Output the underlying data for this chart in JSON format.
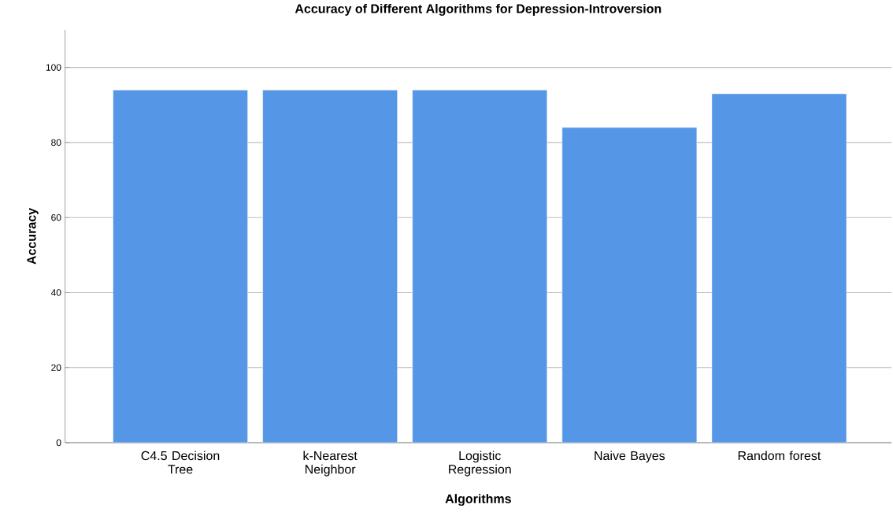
{
  "chart_data": {
    "type": "bar",
    "title": "Accuracy of Different Algorithms for Depression-Introversion",
    "xlabel": "Algorithms",
    "ylabel": "Accuracy",
    "categories": [
      "C4.5 Decision Tree",
      "k-Nearest Neighbor",
      "Logistic Regression",
      "Naive Bayes",
      "Random forest"
    ],
    "values": [
      94,
      94,
      94,
      84,
      93
    ],
    "color": "#5596e6",
    "ylim": [
      0,
      110
    ],
    "yticks": [
      0,
      20,
      40,
      60,
      80,
      100
    ],
    "grid": "y"
  }
}
